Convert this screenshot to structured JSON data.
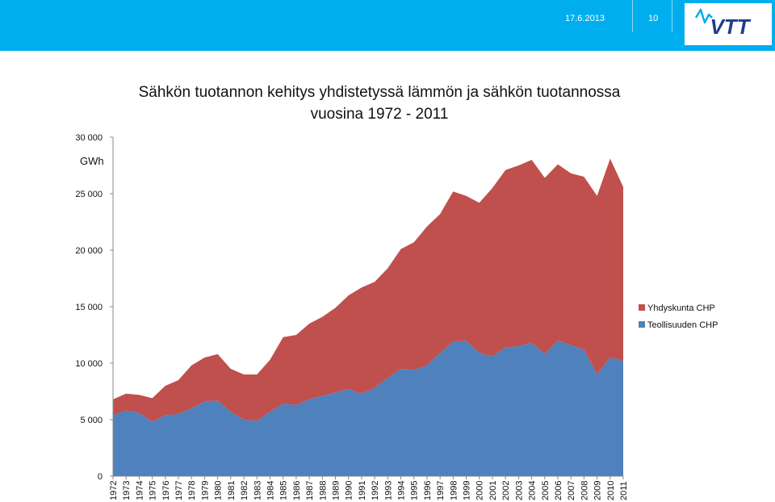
{
  "header": {
    "date": "17.6.2013",
    "page_number": "10",
    "logo_text": "VTT",
    "bar_color": "#00aeef"
  },
  "chart_data": {
    "type": "area",
    "stacked": true,
    "title_line1": "Sähkön tuotannon kehitys yhdistetyssä lämmön ja sähkön tuotannossa",
    "title_line2": "vuosina 1972 - 2011",
    "ylabel": "GWh",
    "xlabel": "",
    "ylim": [
      0,
      30000
    ],
    "y_ticks": [
      0,
      5000,
      10000,
      15000,
      20000,
      25000,
      30000
    ],
    "y_tick_labels": [
      "0",
      "5 000",
      "10 000",
      "15 000",
      "20 000",
      "25 000",
      "30 000"
    ],
    "grid": false,
    "legend_position": "right",
    "categories": [
      "1972",
      "1973",
      "1974",
      "1975",
      "1976",
      "1977",
      "1978",
      "1979",
      "1980",
      "1981",
      "1982",
      "1983",
      "1984",
      "1985",
      "1986",
      "1987",
      "1988",
      "1989",
      "1990",
      "1991",
      "1992",
      "1993",
      "1994",
      "1995",
      "1996",
      "1997",
      "1998",
      "1999",
      "2000",
      "2001",
      "2002",
      "2003",
      "2004",
      "2005",
      "2006",
      "2007",
      "2008",
      "2009",
      "2010",
      "2011"
    ],
    "series": [
      {
        "name": "Teollisuuden CHP",
        "color": "#4f81bd",
        "values": [
          5400,
          5800,
          5600,
          4800,
          5400,
          5500,
          6000,
          6600,
          6700,
          5700,
          5000,
          4900,
          5700,
          6400,
          6300,
          6800,
          7100,
          7400,
          7700,
          7300,
          7800,
          8700,
          9500,
          9400,
          9800,
          10900,
          11900,
          12000,
          10900,
          10600,
          11400,
          11500,
          11800,
          10800,
          12000,
          11600,
          11200,
          9000,
          10500,
          10200
        ]
      },
      {
        "name": "Yhdyskunta CHP",
        "color": "#c0504d",
        "values": [
          1400,
          1500,
          1600,
          2100,
          2600,
          3000,
          3800,
          3900,
          4100,
          3800,
          4000,
          4100,
          4600,
          5900,
          6200,
          6700,
          7000,
          7500,
          8300,
          9400,
          9400,
          9700,
          10600,
          11300,
          12300,
          12300,
          13300,
          12800,
          13300,
          14900,
          15700,
          16000,
          16200,
          15600,
          15600,
          15200,
          15300,
          15800,
          17600,
          15400
        ]
      }
    ]
  }
}
